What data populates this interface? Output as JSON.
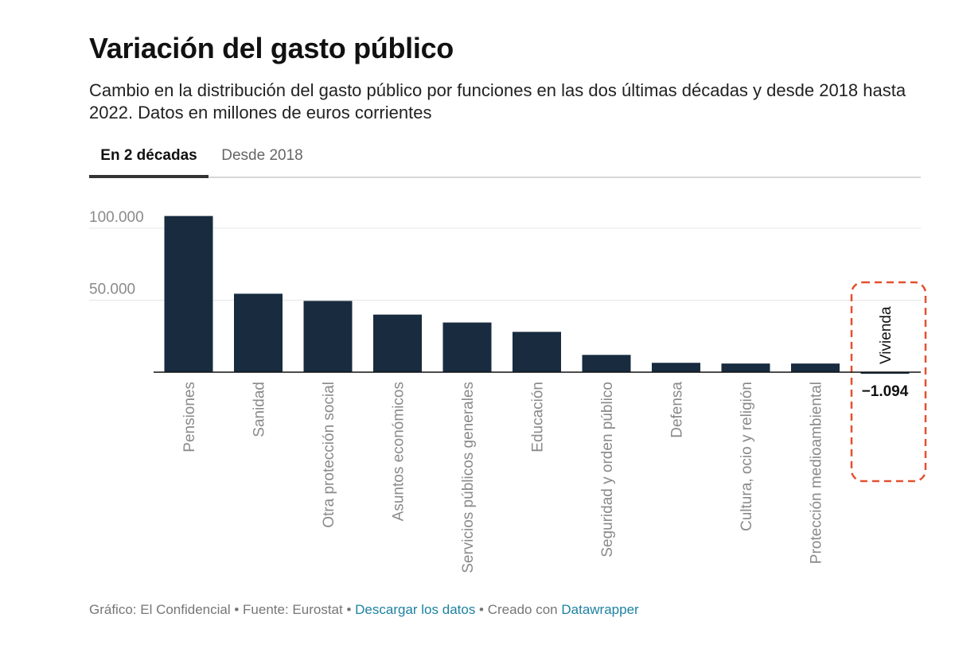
{
  "title": "Variación del gasto público",
  "subtitle": "Cambio en la distribución del gasto público por funciones en las dos últimas décadas y desde 2018 hasta 2022. Datos en millones de euros corrientes",
  "tabs": [
    {
      "label": "En 2 décadas",
      "active": true
    },
    {
      "label": "Desde 2018",
      "active": false
    }
  ],
  "footer": {
    "credit": "Gráfico: El Confidencial",
    "sep1": " • ",
    "source": "Fuente: Eurostat",
    "sep2": " • ",
    "download_label": "Descargar los datos",
    "sep3": " • ",
    "created_prefix": "Creado con ",
    "tool_label": "Datawrapper"
  },
  "colors": {
    "bar": "#182b3f",
    "highlight_box": "#e4502f",
    "link": "#1d81a2",
    "tick_label": "#8a8a8a"
  },
  "chart_data": {
    "type": "bar",
    "categories": [
      "Pensiones",
      "Sanidad",
      "Otra protección social",
      "Asuntos económicos",
      "Servicios públicos generales",
      "Educación",
      "Seguridad y orden público",
      "Defensa",
      "Cultura, ocio y religión",
      "Protección medioambiental",
      "Vivienda"
    ],
    "values": [
      108500,
      54500,
      49500,
      40000,
      34500,
      28000,
      12000,
      6500,
      6000,
      6000,
      -1094
    ],
    "yticks": [
      50000,
      100000
    ],
    "ytick_labels": [
      "50.000",
      "100.000"
    ],
    "ylim": [
      -1094,
      110000
    ],
    "data_labels": [
      {
        "category": "Vivienda",
        "label": "−1.094"
      }
    ],
    "highlight": "Vivienda",
    "grid": true
  }
}
